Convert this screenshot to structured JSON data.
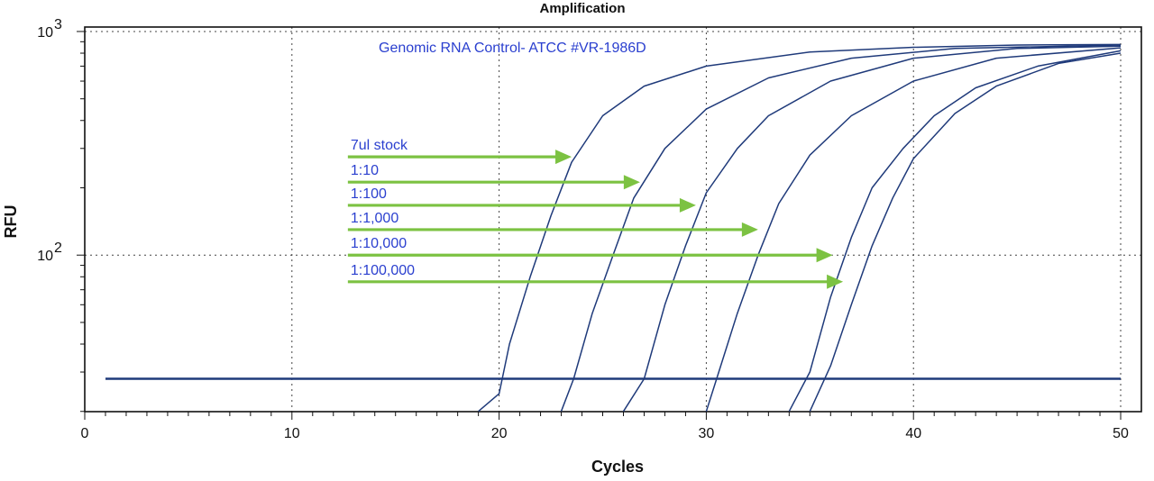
{
  "chart_data": {
    "type": "line",
    "title": "Amplification",
    "xlabel": "Cycles",
    "ylabel": "RFU",
    "xlim": [
      0,
      51
    ],
    "ylim_log10": [
      1.3,
      3.02
    ],
    "y_scale": "log",
    "x_ticks": [
      0,
      10,
      20,
      30,
      40,
      50
    ],
    "y_ticks": [
      {
        "log10": 2,
        "base": "10",
        "exp": "2"
      },
      {
        "log10": 3,
        "base": "10",
        "exp": "3"
      }
    ],
    "grid": true,
    "annotation": "Genomic RNA Control- ATCC #VR-1986D",
    "line_color": "#1f3a7a",
    "arrow_color": "#7cc242",
    "dilutions": [
      {
        "label": "7ul stock",
        "arrow_x": [
          12.7,
          23.5
        ],
        "rfu": 275
      },
      {
        "label": "1:10",
        "arrow_x": [
          12.7,
          26.8
        ],
        "rfu": 212
      },
      {
        "label": "1:100",
        "arrow_x": [
          12.7,
          29.5
        ],
        "rfu": 167
      },
      {
        "label": "1:1,000",
        "arrow_x": [
          12.7,
          32.5
        ],
        "rfu": 130
      },
      {
        "label": "1:10,000",
        "arrow_x": [
          12.7,
          36.1
        ],
        "rfu": 100
      },
      {
        "label": "1:100,000",
        "arrow_x": [
          12.7,
          36.6
        ],
        "rfu": 76
      }
    ],
    "series": [
      {
        "x": [
          19,
          20,
          20.5,
          21.5,
          22.5,
          23.5,
          25,
          27,
          30,
          35,
          40,
          45,
          50
        ],
        "y": [
          20,
          24,
          40,
          80,
          150,
          260,
          420,
          570,
          700,
          810,
          850,
          870,
          875
        ]
      },
      {
        "x": [
          23,
          23.6,
          24.5,
          25.5,
          26.5,
          28,
          30,
          33,
          37,
          42,
          50
        ],
        "y": [
          20,
          28,
          55,
          100,
          180,
          300,
          450,
          620,
          760,
          840,
          870
        ]
      },
      {
        "x": [
          26,
          27,
          28,
          29,
          30,
          31.5,
          33,
          36,
          40,
          45,
          50
        ],
        "y": [
          20,
          28,
          60,
          110,
          190,
          300,
          420,
          600,
          760,
          840,
          860
        ]
      },
      {
        "x": [
          30,
          30.5,
          31.5,
          32.5,
          33.5,
          35,
          37,
          40,
          44,
          50
        ],
        "y": [
          20,
          28,
          55,
          100,
          170,
          280,
          420,
          600,
          760,
          845
        ]
      },
      {
        "x": [
          34,
          35,
          36,
          37,
          38,
          39.5,
          41,
          43,
          46,
          50
        ],
        "y": [
          20,
          30,
          65,
          120,
          200,
          300,
          420,
          560,
          700,
          820
        ]
      },
      {
        "x": [
          35,
          36,
          37,
          38,
          39,
          40,
          42,
          44,
          47,
          50
        ],
        "y": [
          20,
          32,
          60,
          110,
          180,
          270,
          430,
          570,
          720,
          800
        ]
      },
      {
        "x": [
          1,
          50
        ],
        "y": [
          28,
          28
        ]
      }
    ]
  }
}
